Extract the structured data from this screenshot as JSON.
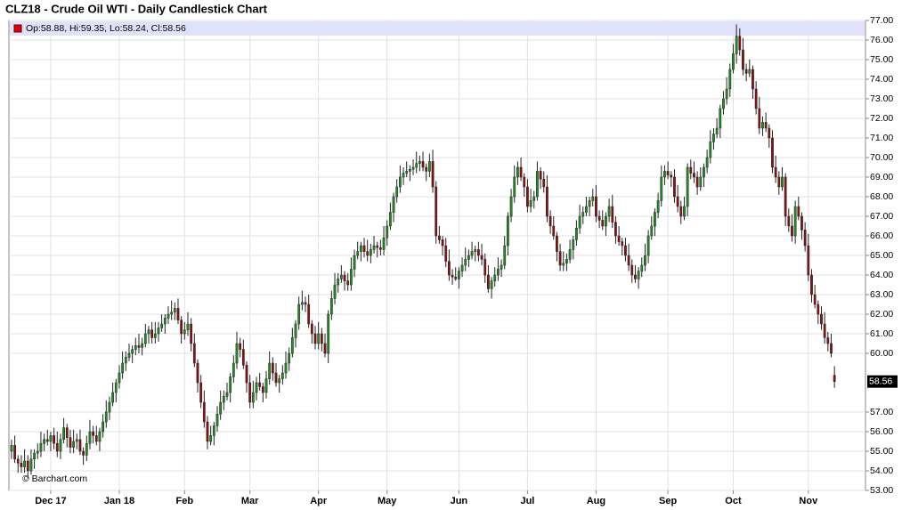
{
  "chart_data": {
    "type": "candlestick",
    "title": "CLZ18 - Crude Oil WTI - Daily Candlestick Chart",
    "legend_text": "Op:58.88, Hi:59.35, Lo:58.24, Cl:58.56",
    "watermark": "© Barchart.com",
    "up_color": "#1f8f1f",
    "down_color": "#8b1010",
    "grid": true,
    "xlim": [
      -0.8,
      261.5
    ],
    "xticks": [
      {
        "value": 12,
        "label": "Dec 17"
      },
      {
        "value": 33,
        "label": "Jan 18"
      },
      {
        "value": 53,
        "label": "Feb"
      },
      {
        "value": 73,
        "label": "Mar"
      },
      {
        "value": 94,
        "label": "Apr"
      },
      {
        "value": 115,
        "label": "May"
      },
      {
        "value": 137,
        "label": "Jun"
      },
      {
        "value": 158,
        "label": "Jul"
      },
      {
        "value": 179,
        "label": "Aug"
      },
      {
        "value": 201,
        "label": "Sep"
      },
      {
        "value": 221,
        "label": "Oct"
      },
      {
        "value": 244,
        "label": "Nov"
      }
    ],
    "ylim": [
      53,
      77
    ],
    "yticks": [
      {
        "value": 53,
        "label": "53.00"
      },
      {
        "value": 54,
        "label": "54.00"
      },
      {
        "value": 55,
        "label": "55.00"
      },
      {
        "value": 56,
        "label": "56.00"
      },
      {
        "value": 57,
        "label": "57.00"
      },
      {
        "value": 60,
        "label": "60.00"
      },
      {
        "value": 61,
        "label": "61.00"
      },
      {
        "value": 62,
        "label": "62.00"
      },
      {
        "value": 63,
        "label": "63.00"
      },
      {
        "value": 64,
        "label": "64.00"
      },
      {
        "value": 65,
        "label": "65.00"
      },
      {
        "value": 66,
        "label": "66.00"
      },
      {
        "value": 67,
        "label": "67.00"
      },
      {
        "value": 68,
        "label": "68.00"
      },
      {
        "value": 69,
        "label": "69.00"
      },
      {
        "value": 70,
        "label": "70.00"
      },
      {
        "value": 71,
        "label": "71.00"
      },
      {
        "value": 72,
        "label": "72.00"
      },
      {
        "value": 73,
        "label": "73.00"
      },
      {
        "value": 74,
        "label": "74.00"
      },
      {
        "value": 75,
        "label": "75.00"
      },
      {
        "value": 76,
        "label": "76.00"
      },
      {
        "value": 77,
        "label": "77.00"
      }
    ],
    "open": [
      55.0,
      55.3,
      54.6,
      54.4,
      54.2,
      54.5,
      54.0,
      54.6,
      54.9,
      55.0,
      55.4,
      55.6,
      55.5,
      55.8,
      55.4,
      55.0,
      55.6,
      56.2,
      55.7,
      55.2,
      55.5,
      55.6,
      55.0,
      54.8,
      55.4,
      56.0,
      55.8,
      55.5,
      56.0,
      56.5,
      57.0,
      57.5,
      58.0,
      58.5,
      59.0,
      59.5,
      59.8,
      60.0,
      60.2,
      60.4,
      60.3,
      60.5,
      61.0,
      61.2,
      60.8,
      61.0,
      61.3,
      61.5,
      61.8,
      62.0,
      62.1,
      62.3,
      61.7,
      61.0,
      61.2,
      61.5,
      60.5,
      59.5,
      58.5,
      57.5,
      56.5,
      55.5,
      55.8,
      56.3,
      56.9,
      57.5,
      57.8,
      58.0,
      58.8,
      59.5,
      60.5,
      60.2,
      59.4,
      58.5,
      57.5,
      58.0,
      58.5,
      58.3,
      58.0,
      58.7,
      59.5,
      59.0,
      58.5,
      58.7,
      59.0,
      59.5,
      60.0,
      60.8,
      61.5,
      62.5,
      62.6,
      62.5,
      61.5,
      61.0,
      60.5,
      61.0,
      60.5,
      60.0,
      62.0,
      62.8,
      63.5,
      63.8,
      64.0,
      63.7,
      63.5,
      64.3,
      65.0,
      65.2,
      65.5,
      65.2,
      65.0,
      65.3,
      65.5,
      65.4,
      65.3,
      65.9,
      66.5,
      67.2,
      68.0,
      68.5,
      69.0,
      69.2,
      69.3,
      69.4,
      69.5,
      69.7,
      69.8,
      69.5,
      69.3,
      69.8,
      68.5,
      66.0,
      65.8,
      65.5,
      64.7,
      64.0,
      63.9,
      63.8,
      64.2,
      64.5,
      64.8,
      65.0,
      65.2,
      65.3,
      65.0,
      64.8,
      64.0,
      63.3,
      63.7,
      64.0,
      64.3,
      64.5,
      65.5,
      67.0,
      68.0,
      69.0,
      69.5,
      69.0,
      68.5,
      67.5,
      67.8,
      68.0,
      69.3,
      68.9,
      68.5,
      67.0,
      66.5,
      66.0,
      65.2,
      64.5,
      64.6,
      64.8,
      65.3,
      65.8,
      66.4,
      67.0,
      67.2,
      67.5,
      67.8,
      68.0,
      67.0,
      66.8,
      66.5,
      67.0,
      67.5,
      66.7,
      66.0,
      65.7,
      65.5,
      65.0,
      64.5,
      64.0,
      63.8,
      64.2,
      64.5,
      65.0,
      66.0,
      66.5,
      67.2,
      67.8,
      69.0,
      69.3,
      69.1,
      69.0,
      68.0,
      67.5,
      67.0,
      67.5,
      69.5,
      69.2,
      69.0,
      68.5,
      69.0,
      69.5,
      70.0,
      70.8,
      71.2,
      71.5,
      72.5,
      73.0,
      73.5,
      74.5,
      75.3,
      76.2,
      75.5,
      74.5,
      74.3,
      74.5,
      73.5,
      72.5,
      71.5,
      71.8,
      71.5,
      71.0,
      69.5,
      69.0,
      68.5,
      69.0,
      67.0,
      66.5,
      66.0,
      67.5,
      67.0,
      66.3,
      65.5,
      64.0,
      63.0,
      62.5,
      62.0,
      61.5,
      60.8,
      60.5,
      58.88
    ],
    "high": [
      55.6,
      55.8,
      54.8,
      54.8,
      55.1,
      54.8,
      55.1,
      55.1,
      55.4,
      56.0,
      55.9,
      56.1,
      56.0,
      56.2,
      56.0,
      55.9,
      56.7,
      56.4,
      56.1,
      56.1,
      55.9,
      56.1,
      55.2,
      55.8,
      56.6,
      56.3,
      56.3,
      56.2,
      56.9,
      57.6,
      57.8,
      58.5,
      58.7,
      59.4,
      60.1,
      60.1,
      60.5,
      60.4,
      60.8,
      61.0,
      60.8,
      61.5,
      61.4,
      61.6,
      61.6,
      61.6,
      62.0,
      62.0,
      62.4,
      62.7,
      62.6,
      62.8,
      61.9,
      61.6,
      62.1,
      61.8,
      61.0,
      59.7,
      58.9,
      58.1,
      56.8,
      56.3,
      56.5,
      57.3,
      58.1,
      58.1,
      58.5,
      59.0,
      59.9,
      61.1,
      60.8,
      60.7,
      59.6,
      58.9,
      58.6,
      58.8,
      59.0,
      58.5,
      59.1,
      60.1,
      59.8,
      59.5,
      58.9,
      59.4,
      60.1,
      60.3,
      61.3,
      61.7,
      62.9,
      63.2,
      62.9,
      63.0,
      61.7,
      61.4,
      61.6,
      61.3,
      61.0,
      62.2,
      63.2,
      64.1,
      64.1,
      64.5,
      64.2,
      64.1,
      64.9,
      65.3,
      65.7,
      65.7,
      65.9,
      65.8,
      65.6,
      66.0,
      65.7,
      65.8,
      66.5,
      66.8,
      67.7,
      68.2,
      68.9,
      69.6,
      69.5,
      69.8,
      69.6,
      69.9,
      70.3,
      70.1,
      70.3,
      69.7,
      70.2,
      70.4,
      68.8,
      66.5,
      66.0,
      65.9,
      65.3,
      64.3,
      64.4,
      64.4,
      64.9,
      65.4,
      65.3,
      65.7,
      65.5,
      65.7,
      65.6,
      65.1,
      64.5,
      63.9,
      64.4,
      64.9,
      64.8,
      66.0,
      67.2,
      68.4,
      69.6,
      69.8,
      70.0,
      69.2,
      68.9,
      68.4,
      68.3,
      69.8,
      69.5,
      69.3,
      69.1,
      67.3,
      67.0,
      66.2,
      65.6,
      65.2,
      65.1,
      65.8,
      66.0,
      66.8,
      67.6,
      67.5,
      68.0,
      68.0,
      68.4,
      68.6,
      67.3,
      67.3,
      67.2,
      67.9,
      68.1,
      67.0,
      66.5,
      65.9,
      65.9,
      65.6,
      64.8,
      64.5,
      64.4,
      64.9,
      65.6,
      66.3,
      67.0,
      67.4,
      68.2,
      69.6,
      69.6,
      69.8,
      69.3,
      69.4,
      68.6,
      67.8,
      68.0,
      69.7,
      69.9,
      69.8,
      69.3,
      69.5,
      69.7,
      70.4,
      71.4,
      71.5,
      72.0,
      72.7,
      73.4,
      74.1,
      74.8,
      75.8,
      76.8,
      76.6,
      76.1,
      74.8,
      75.0,
      74.7,
      73.9,
      73.1,
      72.1,
      72.3,
      71.7,
      71.4,
      70.1,
      69.3,
      69.5,
      69.2,
      67.4,
      67.1,
      67.8,
      68.0,
      67.2,
      66.7,
      66.1,
      64.3,
      63.5,
      62.7,
      62.4,
      62.1,
      61.1,
      61.0,
      59.35
    ],
    "low": [
      54.6,
      54.4,
      53.9,
      53.9,
      53.9,
      53.6,
      53.8,
      54.1,
      54.6,
      54.7,
      55.0,
      55.3,
      55.0,
      55.1,
      54.7,
      54.6,
      55.4,
      55.2,
      54.9,
      54.9,
      55.1,
      54.8,
      54.3,
      54.5,
      55.1,
      55.4,
      55.3,
      55.0,
      55.7,
      56.2,
      56.6,
      57.3,
      57.5,
      58.2,
      58.7,
      59.1,
      59.6,
      59.5,
      59.9,
      60.0,
      59.9,
      60.3,
      60.5,
      60.5,
      60.5,
      60.6,
      61.1,
      61.0,
      61.5,
      61.7,
      61.7,
      61.5,
      60.5,
      60.7,
      60.9,
      60.1,
      59.3,
      58.0,
      57.2,
      56.2,
      55.1,
      55.3,
      55.3,
      56.0,
      56.6,
      57.1,
      57.6,
      57.5,
      58.5,
      59.2,
      59.8,
      59.2,
      58.0,
      57.2,
      57.2,
      57.6,
      58.1,
      57.5,
      57.7,
      58.4,
      58.6,
      58.3,
      58.0,
      58.4,
      58.7,
      59.1,
      59.8,
      60.3,
      61.2,
      62.2,
      62.1,
      61.3,
      60.5,
      60.2,
      60.2,
      60.1,
      59.8,
      59.5,
      61.7,
      62.5,
      63.1,
      63.6,
      63.2,
      63.2,
      63.2,
      63.9,
      64.8,
      64.7,
      64.9,
      64.7,
      64.6,
      65.1,
      64.9,
      65.0,
      65.0,
      65.5,
      66.3,
      66.7,
      67.7,
      68.2,
      68.6,
      69.0,
      68.8,
      69.1,
      69.2,
      69.3,
      69.3,
      68.8,
      69.0,
      68.2,
      65.6,
      65.6,
      65.0,
      64.4,
      63.7,
      63.5,
      63.7,
      63.3,
      63.9,
      64.2,
      64.4,
      64.8,
      64.7,
      64.7,
      64.5,
      63.6,
      63.1,
      62.8,
      63.4,
      63.7,
      63.9,
      64.3,
      65.0,
      66.7,
      67.7,
      68.6,
      68.8,
      68.0,
      67.2,
      67.2,
      67.4,
      67.8,
      68.4,
      68.2,
      66.7,
      66.1,
      65.8,
      64.7,
      64.2,
      64.2,
      64.2,
      64.6,
      64.8,
      65.5,
      66.1,
      66.6,
      67.0,
      67.0,
      67.5,
      66.7,
      66.4,
      66.3,
      66.0,
      66.7,
      66.4,
      65.6,
      65.5,
      65.0,
      64.7,
      64.2,
      63.6,
      63.6,
      63.3,
      63.9,
      64.2,
      64.6,
      65.8,
      66.0,
      66.9,
      67.5,
      68.6,
      68.9,
      68.5,
      67.7,
      67.2,
      66.6,
      66.8,
      67.0,
      68.9,
      68.7,
      68.1,
      68.3,
      68.5,
      69.2,
      69.7,
      70.4,
      71.0,
      71.0,
      72.2,
      72.7,
      73.1,
      74.3,
      74.8,
      75.2,
      74.2,
      73.9,
      74.1,
      73.0,
      72.2,
      71.2,
      71.1,
      71.3,
      70.5,
      69.2,
      68.7,
      68.1,
      68.3,
      66.5,
      66.2,
      65.7,
      65.6,
      66.8,
      65.8,
      65.2,
      63.7,
      62.6,
      62.3,
      61.5,
      61.2,
      60.5,
      60.1,
      59.8,
      58.24
    ],
    "close": [
      55.3,
      54.6,
      54.4,
      54.2,
      54.5,
      54.0,
      54.6,
      54.9,
      55.0,
      55.4,
      55.6,
      55.5,
      55.8,
      55.4,
      55.0,
      55.6,
      56.2,
      55.7,
      55.2,
      55.5,
      55.6,
      55.0,
      54.8,
      55.4,
      56.0,
      55.8,
      55.5,
      56.0,
      56.5,
      57.0,
      57.5,
      58.0,
      58.5,
      59.0,
      59.5,
      59.8,
      60.0,
      60.2,
      60.4,
      60.3,
      60.5,
      61.0,
      61.2,
      60.8,
      61.0,
      61.3,
      61.5,
      61.8,
      62.0,
      62.1,
      62.3,
      61.7,
      61.0,
      61.2,
      61.5,
      60.5,
      59.5,
      58.5,
      57.5,
      56.5,
      55.5,
      55.8,
      56.3,
      56.9,
      57.5,
      57.8,
      58.0,
      58.8,
      59.5,
      60.5,
      60.2,
      59.4,
      58.5,
      57.5,
      58.0,
      58.5,
      58.3,
      58.0,
      58.7,
      59.5,
      59.0,
      58.5,
      58.7,
      59.0,
      59.5,
      60.0,
      60.8,
      61.5,
      62.5,
      62.6,
      62.5,
      61.5,
      61.0,
      60.5,
      61.0,
      60.5,
      60.0,
      62.0,
      62.8,
      63.5,
      63.8,
      64.0,
      63.7,
      63.5,
      64.3,
      65.0,
      65.2,
      65.5,
      65.2,
      65.0,
      65.3,
      65.5,
      65.4,
      65.3,
      65.9,
      66.5,
      67.2,
      68.0,
      68.5,
      69.0,
      69.2,
      69.3,
      69.4,
      69.5,
      69.7,
      69.8,
      69.5,
      69.3,
      69.8,
      68.5,
      66.0,
      65.8,
      65.5,
      64.7,
      64.0,
      63.9,
      63.8,
      64.2,
      64.5,
      64.8,
      65.0,
      65.2,
      65.3,
      65.0,
      64.8,
      64.0,
      63.3,
      63.7,
      64.0,
      64.3,
      64.5,
      65.5,
      67.0,
      68.0,
      69.0,
      69.5,
      69.0,
      68.5,
      67.5,
      67.8,
      68.0,
      69.3,
      68.9,
      68.5,
      67.0,
      66.5,
      66.0,
      65.2,
      64.5,
      64.6,
      64.8,
      65.3,
      65.8,
      66.4,
      67.0,
      67.2,
      67.5,
      67.8,
      68.0,
      67.0,
      66.8,
      66.5,
      67.0,
      67.5,
      66.7,
      66.0,
      65.7,
      65.5,
      65.0,
      64.5,
      64.0,
      63.8,
      64.2,
      64.5,
      65.0,
      66.0,
      66.5,
      67.2,
      67.8,
      69.0,
      69.3,
      69.1,
      69.0,
      68.0,
      67.5,
      67.0,
      67.5,
      69.5,
      69.2,
      69.0,
      68.5,
      69.0,
      69.5,
      70.0,
      70.8,
      71.2,
      71.5,
      72.5,
      73.0,
      73.5,
      74.5,
      75.3,
      76.2,
      75.5,
      74.5,
      74.3,
      74.5,
      73.5,
      72.5,
      71.5,
      71.8,
      71.5,
      71.0,
      69.5,
      69.0,
      68.5,
      69.0,
      67.0,
      66.5,
      66.0,
      67.5,
      67.0,
      66.3,
      65.5,
      64.0,
      63.0,
      62.5,
      62.0,
      61.5,
      60.8,
      60.5,
      60.0,
      58.56
    ]
  }
}
